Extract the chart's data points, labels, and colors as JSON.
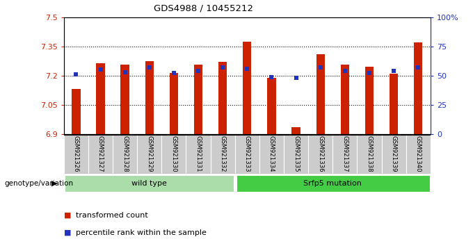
{
  "title": "GDS4988 / 10455212",
  "samples": [
    "GSM921326",
    "GSM921327",
    "GSM921328",
    "GSM921329",
    "GSM921330",
    "GSM921331",
    "GSM921332",
    "GSM921333",
    "GSM921334",
    "GSM921335",
    "GSM921336",
    "GSM921337",
    "GSM921338",
    "GSM921339",
    "GSM921340"
  ],
  "red_values": [
    7.13,
    7.265,
    7.255,
    7.275,
    7.215,
    7.255,
    7.27,
    7.375,
    7.19,
    6.935,
    7.31,
    7.255,
    7.245,
    7.21,
    7.37
  ],
  "blue_percentiles": [
    51,
    55,
    53,
    57,
    52,
    54,
    57,
    56,
    49,
    48,
    57,
    54,
    52,
    54,
    57
  ],
  "ylim_left": [
    6.9,
    7.5
  ],
  "ylim_right": [
    0,
    100
  ],
  "yticks_left": [
    6.9,
    7.05,
    7.2,
    7.35,
    7.5
  ],
  "yticks_right": [
    0,
    25,
    50,
    75,
    100
  ],
  "ytick_labels_left": [
    "6.9",
    "7.05",
    "7.2",
    "7.35",
    "7.5"
  ],
  "ytick_labels_right": [
    "0",
    "25",
    "50",
    "75",
    "100%"
  ],
  "hline_y": [
    7.05,
    7.2,
    7.35
  ],
  "bar_color": "#cc2200",
  "marker_color": "#2233bb",
  "bg_color": "#ffffff",
  "left_label_color": "#cc2200",
  "right_label_color": "#2233bb",
  "wt_band_color": "#aaddaa",
  "mut_band_color": "#44cc44",
  "wt_label": "wild type",
  "mut_label": "Srfp5 mutation",
  "wt_count": 7,
  "legend_items": [
    "transformed count",
    "percentile rank within the sample"
  ],
  "genotype_label": "genotype/variation",
  "figsize": [
    6.8,
    3.54
  ],
  "dpi": 100
}
